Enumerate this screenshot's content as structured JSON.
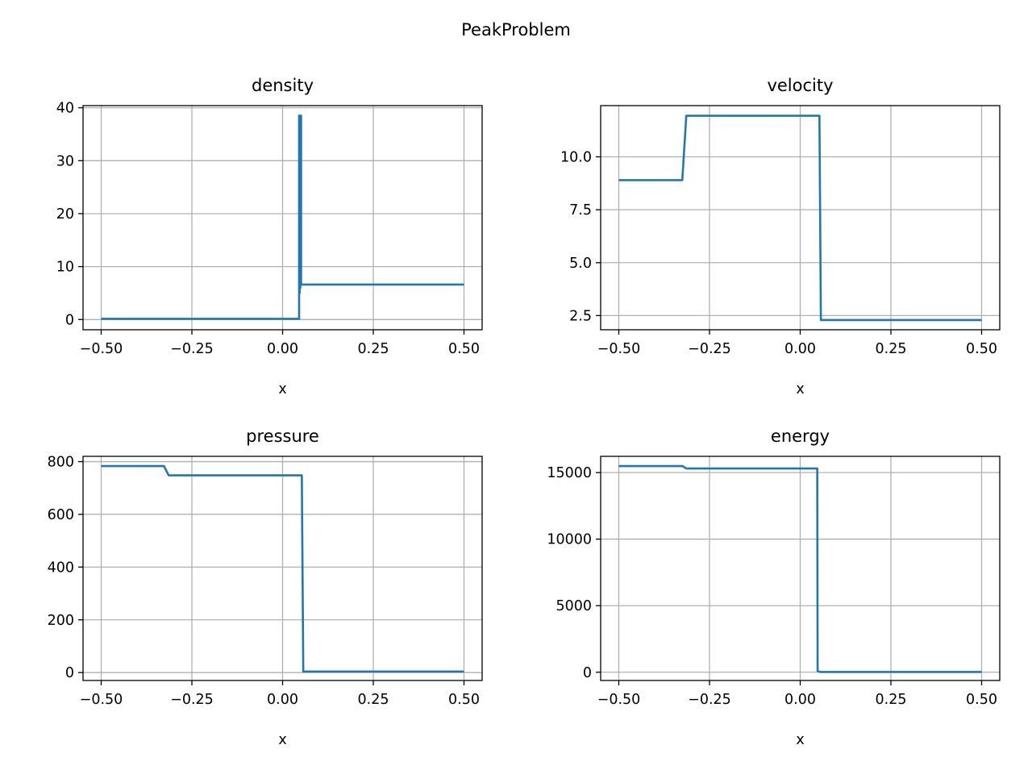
{
  "figure_title": "PeakProblem",
  "chart_data": [
    {
      "type": "line",
      "title": "density",
      "xlabel": "x",
      "ylabel": "",
      "xlim": [
        -0.55,
        0.55
      ],
      "ylim": [
        -1.93,
        40.4
      ],
      "xticks": [
        -0.5,
        -0.25,
        0.0,
        0.25,
        0.5
      ],
      "xtick_labels": [
        "−0.50",
        "−0.25",
        "0.00",
        "0.25",
        "0.50"
      ],
      "yticks": [
        0,
        10,
        20,
        30,
        40
      ],
      "ytick_labels": [
        "0",
        "10",
        "20",
        "30",
        "40"
      ],
      "grid": true,
      "series": [
        {
          "x": [
            -0.5,
            0.0455,
            0.0455,
            0.047,
            0.047,
            0.049,
            0.049,
            0.051,
            0.051,
            0.053,
            0.053,
            0.5
          ],
          "y": [
            0.13,
            0.13,
            38.5,
            38.5,
            5.0,
            38.5,
            6.0,
            38.5,
            6.6,
            6.6,
            6.6,
            6.6
          ]
        }
      ]
    },
    {
      "type": "line",
      "title": "velocity",
      "xlabel": "x",
      "ylabel": "",
      "xlim": [
        -0.55,
        0.55
      ],
      "ylim": [
        1.83,
        12.42
      ],
      "xticks": [
        -0.5,
        -0.25,
        0.0,
        0.25,
        0.5
      ],
      "xtick_labels": [
        "−0.50",
        "−0.25",
        "0.00",
        "0.25",
        "0.50"
      ],
      "yticks": [
        2.5,
        5.0,
        7.5,
        10.0
      ],
      "ytick_labels": [
        "2.5",
        "5.0",
        "7.5",
        "10.0"
      ],
      "grid": true,
      "series": [
        {
          "x": [
            -0.5,
            -0.325,
            -0.314,
            0.053,
            0.057,
            0.5
          ],
          "y": [
            8.9,
            8.9,
            11.94,
            11.94,
            2.29,
            2.29
          ]
        }
      ]
    },
    {
      "type": "line",
      "title": "pressure",
      "xlabel": "x",
      "ylabel": "",
      "xlim": [
        -0.55,
        0.55
      ],
      "ylim": [
        -30,
        820
      ],
      "xticks": [
        -0.5,
        -0.25,
        0.0,
        0.25,
        0.5
      ],
      "xtick_labels": [
        "−0.50",
        "−0.25",
        "0.00",
        "0.25",
        "0.50"
      ],
      "yticks": [
        0,
        200,
        400,
        600,
        800
      ],
      "ytick_labels": [
        "0",
        "200",
        "400",
        "600",
        "800"
      ],
      "grid": true,
      "series": [
        {
          "x": [
            -0.5,
            -0.327,
            -0.314,
            0.053,
            0.057,
            0.5
          ],
          "y": [
            783,
            783,
            748,
            748,
            4,
            4
          ]
        }
      ]
    },
    {
      "type": "line",
      "title": "energy",
      "xlabel": "x",
      "ylabel": "",
      "xlim": [
        -0.55,
        0.55
      ],
      "ylim": [
        -620,
        16220
      ],
      "xticks": [
        -0.5,
        -0.25,
        0.0,
        0.25,
        0.5
      ],
      "xtick_labels": [
        "−0.50",
        "−0.25",
        "0.00",
        "0.25",
        "0.50"
      ],
      "yticks": [
        0,
        5000,
        10000,
        15000
      ],
      "ytick_labels": [
        "0",
        "5000",
        "10000",
        "15000"
      ],
      "grid": true,
      "series": [
        {
          "x": [
            -0.5,
            -0.325,
            -0.314,
            0.047,
            0.048,
            0.055,
            0.5
          ],
          "y": [
            15490,
            15490,
            15310,
            15310,
            80,
            20,
            20
          ]
        }
      ]
    }
  ]
}
